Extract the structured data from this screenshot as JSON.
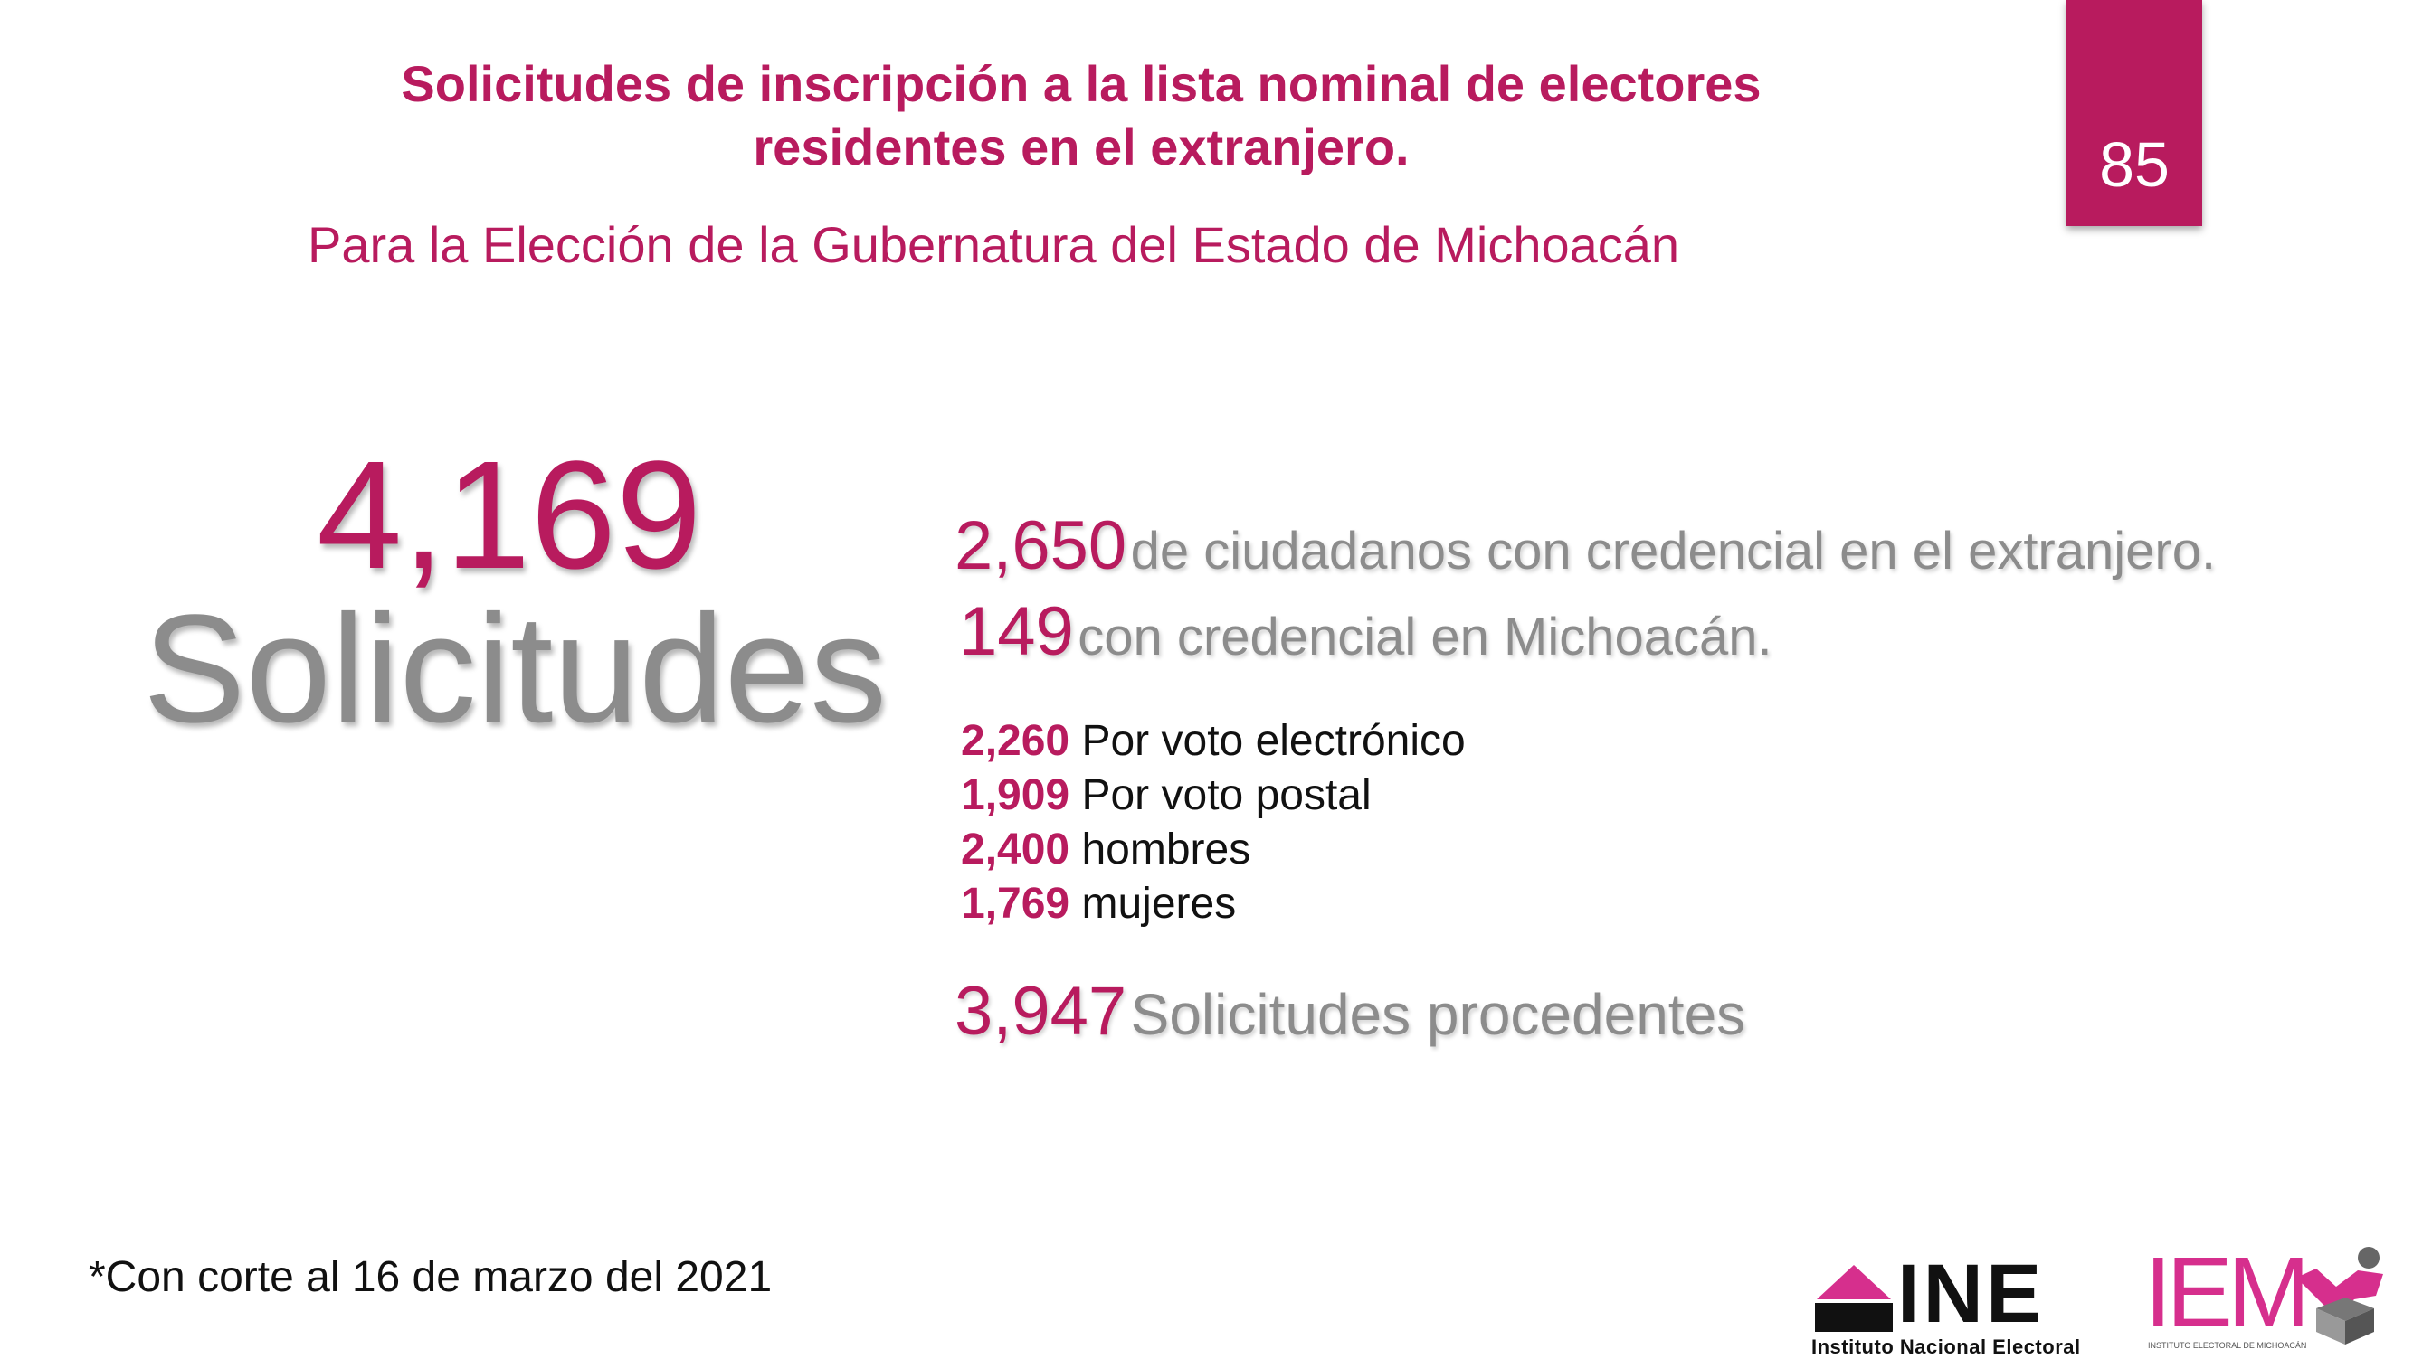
{
  "header": {
    "title_line1": "Solicitudes de inscripción a la lista nominal de electores",
    "title_line2": "residentes en el extranjero.",
    "subtitle": "Para la Elección de la Gubernatura del Estado de Michoacán",
    "page_number": "85"
  },
  "total": {
    "number": "4,169",
    "label": "Solicitudes"
  },
  "credentials": [
    {
      "number": "2,650",
      "text": "de ciudadanos con credencial en el extranjero."
    },
    {
      "number": "149",
      "text": "con credencial en Michoacán."
    }
  ],
  "breakdown": [
    {
      "number": "2,260",
      "text": "Por voto electrónico"
    },
    {
      "number": "1,909",
      "text": "Por voto postal"
    },
    {
      "number": "2,400",
      "text": "hombres"
    },
    {
      "number": "1,769",
      "text": "mujeres"
    }
  ],
  "procedentes": {
    "number": "3,947",
    "text": "Solicitudes procedentes"
  },
  "footnote": "*Con corte al 16 de marzo del 2021",
  "logos": {
    "ine_text": "INE",
    "ine_subtitle": "Instituto Nacional Electoral",
    "iem_text": "IEM",
    "iem_subtitle": "INSTITUTO ELECTORAL DE MICHOACÁN"
  },
  "colors": {
    "accent": "#b81b5e",
    "gray_text": "#8c8c8c",
    "iem_pink": "#d62f8d"
  }
}
